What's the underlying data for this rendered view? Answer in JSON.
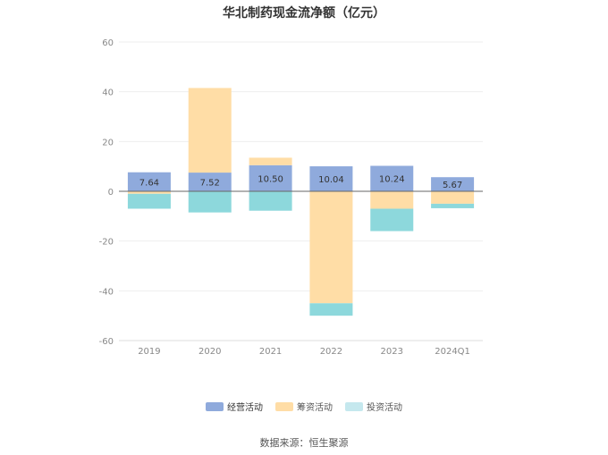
{
  "chart_data": {
    "type": "bar",
    "stacked": true,
    "title": "华北制药现金流净额（亿元）",
    "categories": [
      "2019",
      "2020",
      "2021",
      "2022",
      "2023",
      "2024Q1"
    ],
    "series": [
      {
        "name": "经营活动",
        "color": "#8faadc",
        "values": [
          7.64,
          7.52,
          10.5,
          10.04,
          10.24,
          5.67
        ],
        "show_labels": true
      },
      {
        "name": "筹资活动",
        "color": "#ffdda6",
        "values": [
          -1.0,
          34.0,
          3.0,
          -45.0,
          -7.0,
          -5.0
        ],
        "show_labels": false
      },
      {
        "name": "投资活动",
        "color": "#8dd8dc",
        "values": [
          -6.0,
          -8.5,
          -7.8,
          -5.0,
          -9.0,
          -1.8
        ],
        "show_labels": false
      }
    ],
    "legend_colors": [
      "#8faadc",
      "#ffdda6",
      "#c5e8ee"
    ],
    "y_ticks": [
      60,
      40,
      20,
      0,
      -20,
      -40,
      -60
    ],
    "ylim": [
      -60,
      60
    ],
    "grid": true,
    "legend_position": "bottom"
  },
  "source": "数据来源：恒生聚源"
}
